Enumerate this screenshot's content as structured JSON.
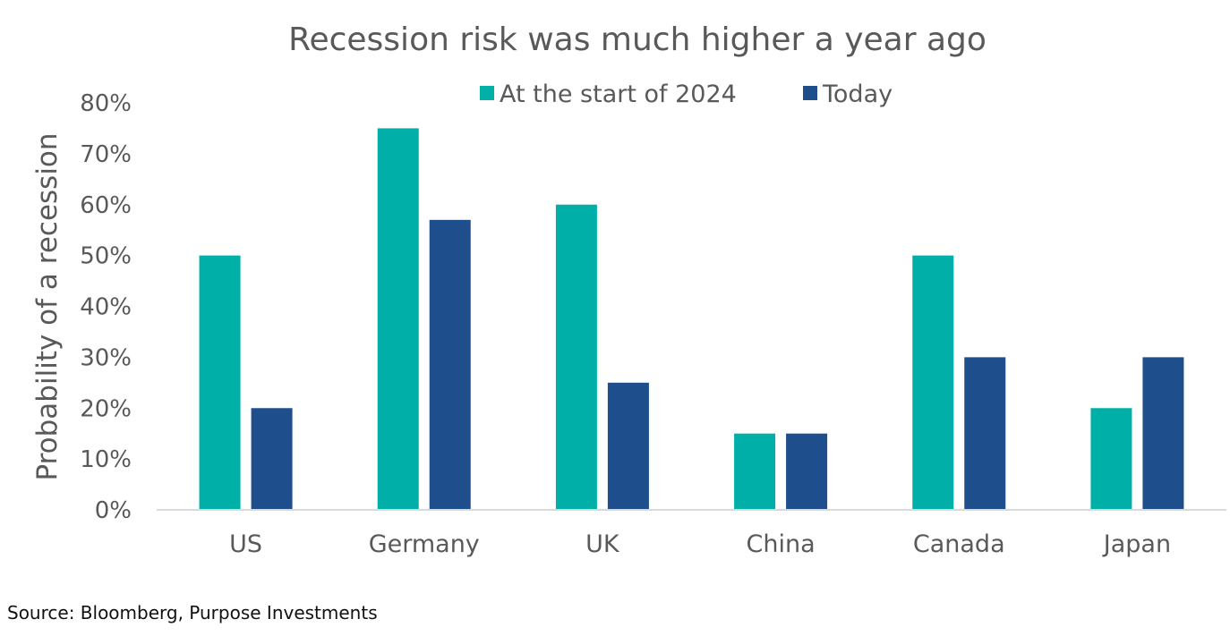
{
  "chart_data": {
    "type": "bar",
    "title": "Recession risk was much higher a year ago",
    "ylabel": "Probability of a recession",
    "xlabel": "",
    "categories": [
      "US",
      "Germany",
      "UK",
      "China",
      "Canada",
      "Japan"
    ],
    "series": [
      {
        "name": "At the start of 2024",
        "color": "#00B0A8",
        "values": [
          50,
          75,
          60,
          15,
          50,
          20
        ]
      },
      {
        "name": "Today",
        "color": "#1F4E8C",
        "values": [
          20,
          57,
          25,
          15,
          30,
          30
        ]
      }
    ],
    "ylim": [
      0,
      80
    ],
    "yticks": [
      "0%",
      "10%",
      "20%",
      "30%",
      "40%",
      "50%",
      "60%",
      "70%",
      "80%"
    ],
    "grid": false,
    "legend_position": "top"
  },
  "source": "Source: Bloomberg, Purpose Investments"
}
